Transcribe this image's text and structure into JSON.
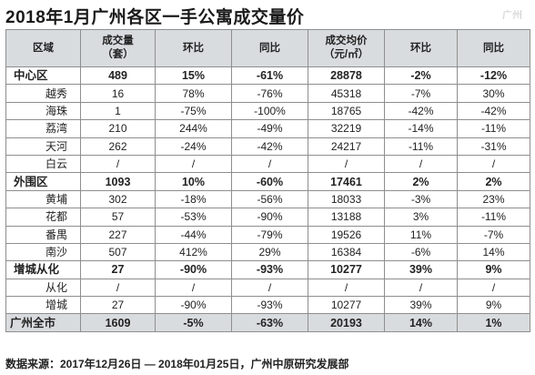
{
  "title": "2018年1月广州各区一手公寓成交量价",
  "watermark": "广州",
  "headers": {
    "region": "区域",
    "volume_line1": "成交量",
    "volume_line2": "（套）",
    "mom1": "环比",
    "yoy1": "同比",
    "price_line1": "成交均价",
    "price_line2": "（元/㎡）",
    "mom2": "环比",
    "yoy2": "同比"
  },
  "rows": [
    {
      "type": "group",
      "name": "中心区",
      "vol": "489",
      "mom1": "15%",
      "yoy1": "-61%",
      "price": "28878",
      "mom2": "-2%",
      "yoy2": "-12%"
    },
    {
      "type": "sub",
      "name": "越秀",
      "vol": "16",
      "mom1": "78%",
      "yoy1": "-76%",
      "price": "45318",
      "mom2": "-7%",
      "yoy2": "30%"
    },
    {
      "type": "sub",
      "name": "海珠",
      "vol": "1",
      "mom1": "-75%",
      "yoy1": "-100%",
      "price": "18765",
      "mom2": "-42%",
      "yoy2": "-42%"
    },
    {
      "type": "sub",
      "name": "荔湾",
      "vol": "210",
      "mom1": "244%",
      "yoy1": "-49%",
      "price": "32219",
      "mom2": "-14%",
      "yoy2": "-11%"
    },
    {
      "type": "sub",
      "name": "天河",
      "vol": "262",
      "mom1": "-24%",
      "yoy1": "-42%",
      "price": "24217",
      "mom2": "-11%",
      "yoy2": "-31%"
    },
    {
      "type": "sub",
      "name": "白云",
      "vol": "/",
      "mom1": "/",
      "yoy1": "/",
      "price": "/",
      "mom2": "/",
      "yoy2": "/"
    },
    {
      "type": "group",
      "name": "外围区",
      "vol": "1093",
      "mom1": "10%",
      "yoy1": "-60%",
      "price": "17461",
      "mom2": "2%",
      "yoy2": "2%"
    },
    {
      "type": "sub",
      "name": "黄埔",
      "vol": "302",
      "mom1": "-18%",
      "yoy1": "-56%",
      "price": "18033",
      "mom2": "-3%",
      "yoy2": "23%"
    },
    {
      "type": "sub",
      "name": "花都",
      "vol": "57",
      "mom1": "-53%",
      "yoy1": "-90%",
      "price": "13188",
      "mom2": "3%",
      "yoy2": "-11%"
    },
    {
      "type": "sub",
      "name": "番禺",
      "vol": "227",
      "mom1": "-44%",
      "yoy1": "-79%",
      "price": "19526",
      "mom2": "11%",
      "yoy2": "-7%"
    },
    {
      "type": "sub",
      "name": "南沙",
      "vol": "507",
      "mom1": "412%",
      "yoy1": "29%",
      "price": "16384",
      "mom2": "-6%",
      "yoy2": "14%"
    },
    {
      "type": "group",
      "name": "增城从化",
      "vol": "27",
      "mom1": "-90%",
      "yoy1": "-93%",
      "price": "10277",
      "mom2": "39%",
      "yoy2": "9%"
    },
    {
      "type": "sub",
      "name": "从化",
      "vol": "/",
      "mom1": "/",
      "yoy1": "/",
      "price": "/",
      "mom2": "/",
      "yoy2": "/"
    },
    {
      "type": "sub",
      "name": "增城",
      "vol": "27",
      "mom1": "-90%",
      "yoy1": "-93%",
      "price": "10277",
      "mom2": "39%",
      "yoy2": "9%"
    },
    {
      "type": "total",
      "name": "广州全市",
      "vol": "1609",
      "mom1": "-5%",
      "yoy1": "-63%",
      "price": "20193",
      "mom2": "14%",
      "yoy2": "1%"
    }
  ],
  "source": "数据来源：2017年12月26日 — 2018年01月25日，广州中原研究发展部"
}
